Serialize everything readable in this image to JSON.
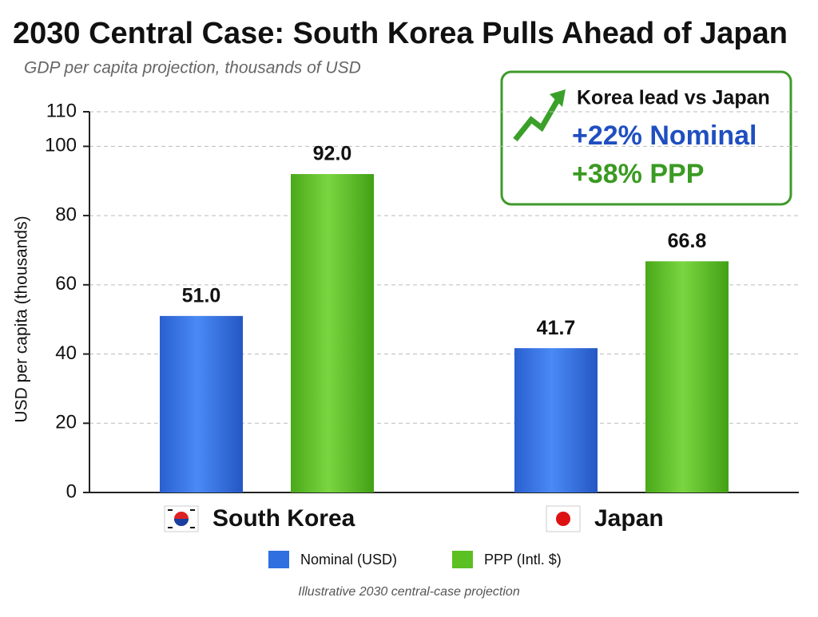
{
  "chart_data": {
    "type": "bar",
    "title": "2030 Central Case: South Korea Pulls Ahead of Japan",
    "subtitle": "GDP per capita projection, thousands of USD",
    "y_label": "USD per capita (thousands)",
    "categories": [
      "South Korea",
      "Japan"
    ],
    "series": [
      {
        "name": "Nominal (USD)",
        "color": "#2f6fe0",
        "values": [
          51.0,
          41.7
        ],
        "value_labels": [
          "51.0",
          "41.7"
        ]
      },
      {
        "name": "PPP (Intl. $)",
        "color": "#5cbf22",
        "values": [
          92.0,
          66.8
        ],
        "value_labels": [
          "92.0",
          "66.8"
        ]
      }
    ],
    "ylim": [
      0,
      110
    ],
    "yticks": [
      0,
      20,
      40,
      60,
      80,
      100,
      110
    ],
    "grid": true,
    "annotations": {
      "heading": "Korea lead vs Japan",
      "nominal": "+22% Nominal",
      "ppp": "+38% PPP"
    },
    "footnote": "Illustrative 2030 central-case projection"
  }
}
